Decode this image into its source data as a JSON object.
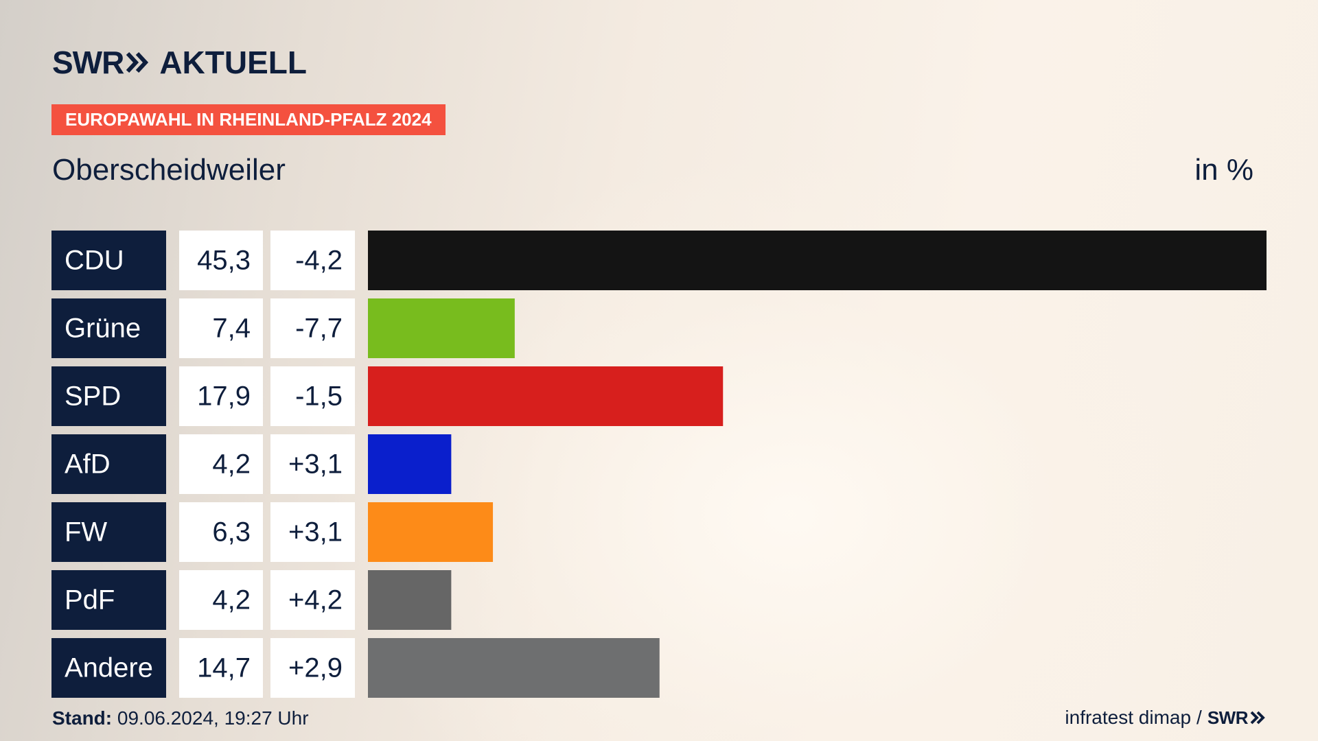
{
  "brand": {
    "logo_swr": "SWR",
    "logo_aktuell": "AKTUELL",
    "badge": "EUROPAWAHL IN RHEINLAND-PFALZ 2024",
    "badge_color": "#f4513f",
    "text_color": "#0e1e3c"
  },
  "header": {
    "subtitle": "Oberscheidweiler",
    "unit": "in %"
  },
  "chart_data": {
    "type": "bar",
    "orientation": "horizontal",
    "categories": [
      "CDU",
      "Grüne",
      "SPD",
      "AfD",
      "FW",
      "PdF",
      "Andere"
    ],
    "values": [
      45.3,
      7.4,
      17.9,
      4.2,
      6.3,
      4.2,
      14.7
    ],
    "value_labels": [
      "45,3",
      "7,4",
      "17,9",
      "4,2",
      "6,3",
      "4,2",
      "14,7"
    ],
    "change_labels": [
      "-4,2",
      "-7,7",
      "-1,5",
      "+3,1",
      "+3,1",
      "+4,2",
      "+2,9"
    ],
    "colors": [
      "#141414",
      "#78bc1e",
      "#d71f1d",
      "#0a1fcc",
      "#fd8b18",
      "#666666",
      "#6e6f70"
    ],
    "label_box_color": "#0e1e3c",
    "xlim": [
      0,
      45.3
    ],
    "grid": false
  },
  "footer": {
    "stand_label": "Stand:",
    "stand_value": " 09.06.2024, 19:27 Uhr",
    "source": "infratest dimap",
    "separator": "/",
    "source_brand": "SWR"
  }
}
